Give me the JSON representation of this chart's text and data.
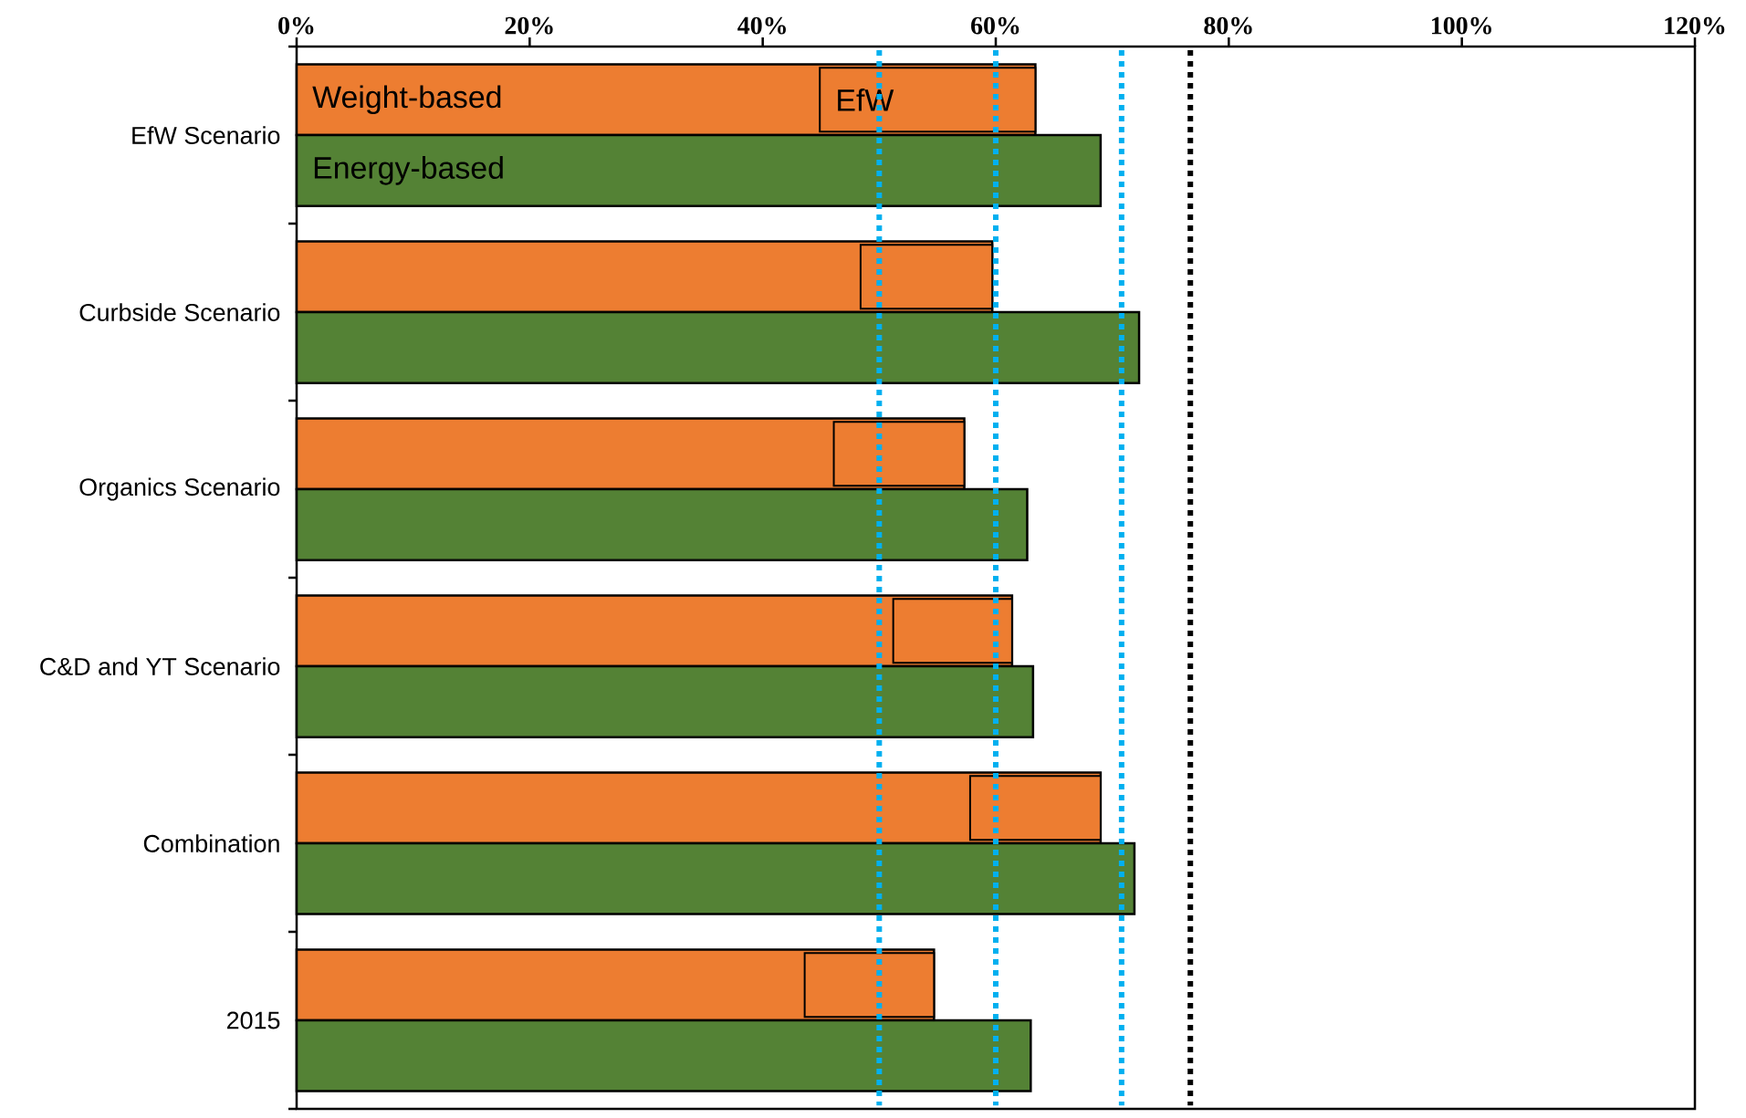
{
  "chart_data": {
    "type": "bar",
    "orientation": "horizontal",
    "categories": [
      "EfW Scenario",
      "Curbside Scenario",
      "Organics Scenario",
      "C&D and YT Scenario",
      "Combination",
      "2015"
    ],
    "series": [
      {
        "name": "Weight-based",
        "color": "#ed7d31",
        "values": [
          63.4,
          59.7,
          57.3,
          61.4,
          69.0,
          54.7
        ]
      },
      {
        "name": "EfW",
        "color": "#ed7d31",
        "base": [
          44.9,
          48.4,
          46.1,
          51.2,
          57.8,
          43.6
        ],
        "values": [
          18.5,
          11.3,
          11.2,
          10.2,
          11.2,
          11.1
        ]
      },
      {
        "name": "Energy-based",
        "color": "#548235",
        "values": [
          69.0,
          72.3,
          62.7,
          63.2,
          71.9,
          63.0
        ]
      }
    ],
    "xlim": [
      0,
      120
    ],
    "xticks": [
      {
        "value": 0,
        "label": "0%"
      },
      {
        "value": 20,
        "label": "20%"
      },
      {
        "value": 40,
        "label": "40%"
      },
      {
        "value": 60,
        "label": "60%"
      },
      {
        "value": 80,
        "label": "80%"
      },
      {
        "value": 100,
        "label": "100%"
      },
      {
        "value": 120,
        "label": "120%"
      }
    ],
    "ref_lines": [
      {
        "axis": "x",
        "value": 50,
        "color": "#00b0f0",
        "line_style": "dotted"
      },
      {
        "axis": "x",
        "value": 60,
        "color": "#00b0f0",
        "line_style": "dotted"
      },
      {
        "axis": "x",
        "value": 70.8,
        "color": "#00b0f0",
        "line_style": "dotted"
      },
      {
        "axis": "x",
        "value": 76.7,
        "color": "#000000",
        "line_style": "dotted"
      }
    ]
  }
}
